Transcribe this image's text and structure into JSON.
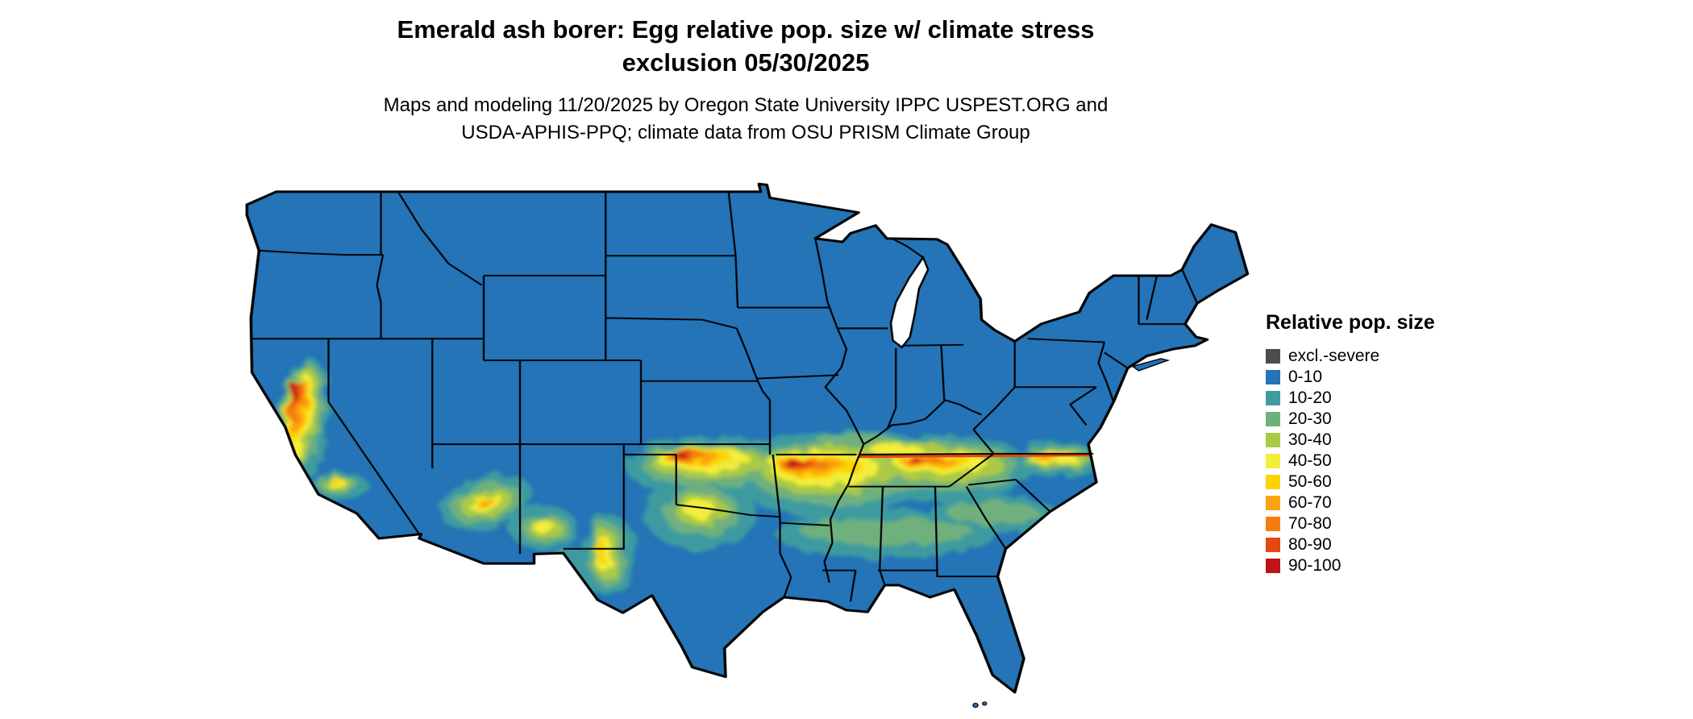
{
  "title": {
    "line1": "Emerald ash borer: Egg relative pop. size w/ climate stress",
    "line2": "exclusion 05/30/2025"
  },
  "subtitle": {
    "line1": "Maps and modeling 11/20/2025 by Oregon State University IPPC USPEST.ORG and",
    "line2": "USDA-APHIS-PPQ; climate data from OSU PRISM Climate Group"
  },
  "legend": {
    "title": "Relative pop. size",
    "items": [
      {
        "label": "excl.-severe",
        "color": "#4d4d4d"
      },
      {
        "label": "0-10",
        "color": "#2474b7"
      },
      {
        "label": "10-20",
        "color": "#3e9ba0"
      },
      {
        "label": "20-30",
        "color": "#6fb07c"
      },
      {
        "label": "30-40",
        "color": "#aac944"
      },
      {
        "label": "40-50",
        "color": "#f2ee3a"
      },
      {
        "label": "50-60",
        "color": "#fdd303"
      },
      {
        "label": "60-70",
        "color": "#fca311"
      },
      {
        "label": "70-80",
        "color": "#f57d10"
      },
      {
        "label": "80-90",
        "color": "#e24a10"
      },
      {
        "label": "90-100",
        "color": "#c01316"
      }
    ]
  },
  "map": {
    "region": "Contiguous United States",
    "water_color": "#ffffff",
    "state_border_color": "#000000",
    "base_class": "0-10"
  }
}
